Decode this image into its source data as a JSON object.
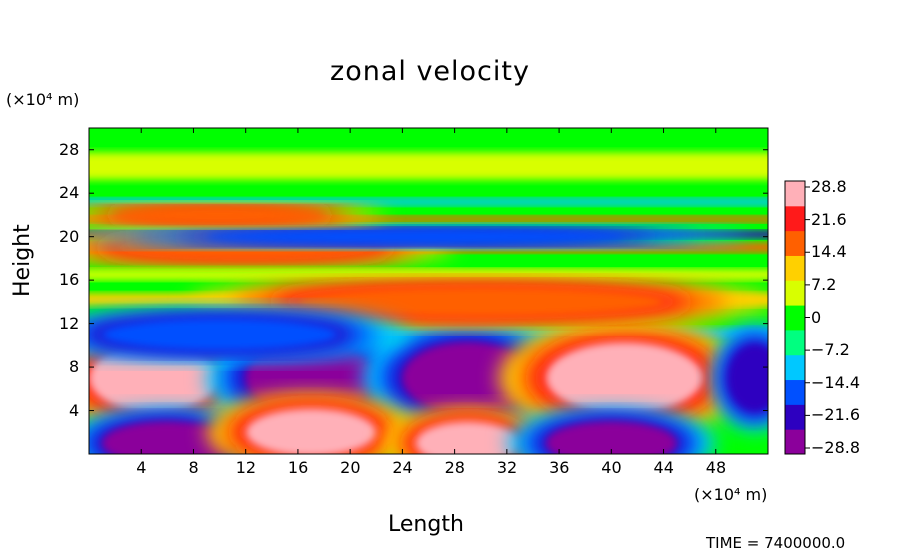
{
  "chart_data": {
    "type": "heatmap",
    "title": "zonal velocity",
    "xlabel": "Length",
    "ylabel": "Height",
    "x_unit": "(×10⁴ m)",
    "y_unit": "(×10⁴ m)",
    "xlim": [
      0,
      52
    ],
    "ylim": [
      0,
      30
    ],
    "x_ticks": [
      "4",
      "8",
      "12",
      "16",
      "20",
      "24",
      "28",
      "32",
      "36",
      "40",
      "44",
      "48"
    ],
    "y_ticks": [
      "4",
      "8",
      "12",
      "16",
      "20",
      "24",
      "28"
    ],
    "colorbar_ticks": [
      "28.8",
      "21.6",
      "14.4",
      "7.2",
      "0",
      "−7.2",
      "−14.4",
      "−21.6",
      "−28.8"
    ],
    "colorbar_range": [
      -28.8,
      28.8
    ],
    "colorbar_colors": [
      "#8b009b",
      "#2d00c0",
      "#0050ff",
      "#00c8ff",
      "#00ff80",
      "#00ff00",
      "#d8ff00",
      "#ffd000",
      "#ff6000",
      "#ff1a1a",
      "#ffb0b8"
    ],
    "features": [
      {
        "x": 5,
        "y": 7,
        "value": 28.8
      },
      {
        "x": 17,
        "y": 7,
        "value": -28.8
      },
      {
        "x": 29,
        "y": 7,
        "value": -28.8
      },
      {
        "x": 41,
        "y": 7,
        "value": 28.8
      },
      {
        "x": 6,
        "y": 1,
        "value": -28.8
      },
      {
        "x": 17,
        "y": 2,
        "value": 28.8
      },
      {
        "x": 29,
        "y": 1,
        "value": 28.8
      },
      {
        "x": 40,
        "y": 1,
        "value": -28.8
      },
      {
        "x": 30,
        "y": 14,
        "value": 18
      },
      {
        "x": 12,
        "y": 19,
        "value": 18
      },
      {
        "x": 25,
        "y": 20,
        "value": -18
      },
      {
        "x": 10,
        "y": 22,
        "value": 18
      },
      {
        "x": 10,
        "y": 11,
        "value": -18
      },
      {
        "x": 51,
        "y": 7,
        "value": -22
      }
    ]
  },
  "footer": "TIME = 7400000.0"
}
